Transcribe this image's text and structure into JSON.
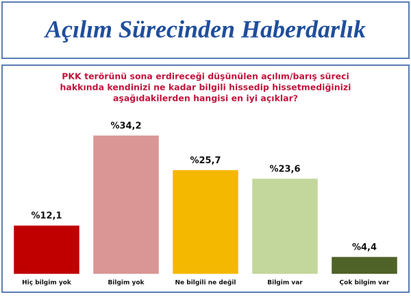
{
  "chart_data": {
    "type": "bar",
    "title": "Açılım Sürecinden Haberdarlık",
    "subtitle": [
      "PKK terörünü sona erdireceği düşünülen açılım/barış süreci",
      "hakkında kendinizi ne kadar bilgili hissedip hissetmediğinizi",
      "aşağıdakilerden hangisi en iyi açıklar?"
    ],
    "categories": [
      "Hiç bilgim yok",
      "Bilgim yok",
      "Ne bilgili ne değil",
      "Bilgim var",
      "Çok bilgim var"
    ],
    "values": [
      12.1,
      34.2,
      25.7,
      23.6,
      4.4
    ],
    "value_labels": [
      "%12,1",
      "%34,2",
      "%25,7",
      "%23,6",
      "%4,4"
    ],
    "colors": [
      "#c00000",
      "#d99694",
      "#f5b800",
      "#c3d69b",
      "#4f6228"
    ]
  }
}
